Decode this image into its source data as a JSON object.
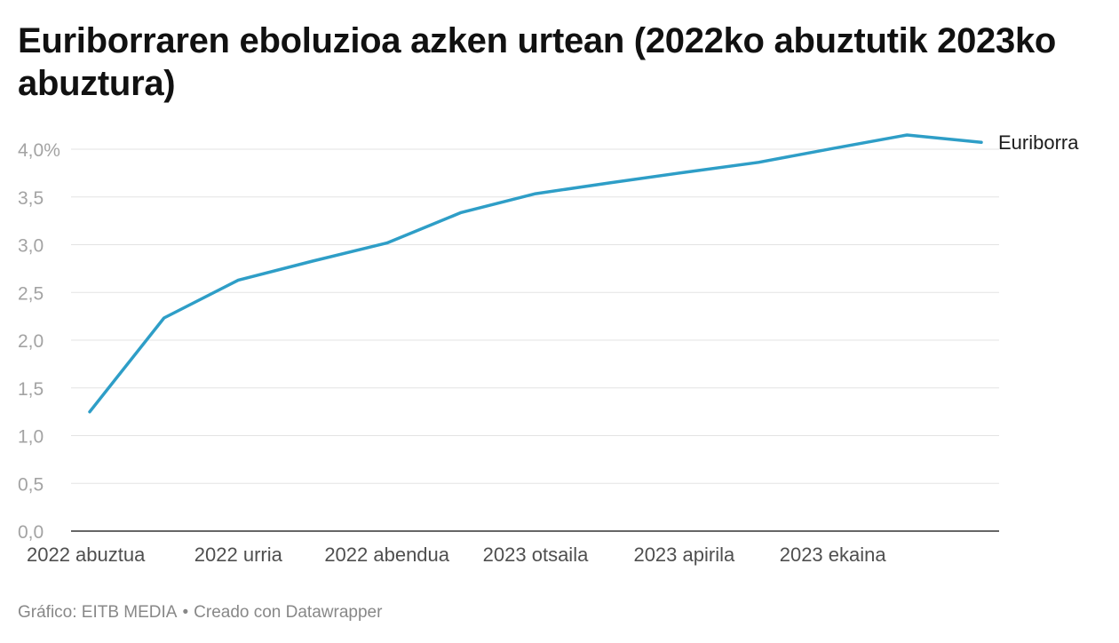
{
  "title": "Euriborraren eboluzioa azken urtean (2022ko abuztutik 2023ko abuztura)",
  "footer": {
    "source": "Gráfico: EITB MEDIA",
    "separator": "•",
    "credit": "Creado con Datawrapper"
  },
  "colors": {
    "line": "#2e9ec7",
    "grid": "#e3e3e3",
    "baseline": "#333333"
  },
  "chart_data": {
    "type": "line",
    "title": "Euriborraren eboluzioa azken urtean (2022ko abuztutik 2023ko abuztura)",
    "xlabel": "",
    "ylabel": "",
    "ylim": [
      0,
      4
    ],
    "yticks": [
      {
        "value": 0,
        "label": "0,0"
      },
      {
        "value": 0.5,
        "label": "0,5"
      },
      {
        "value": 1,
        "label": "1,0"
      },
      {
        "value": 1.5,
        "label": "1,5"
      },
      {
        "value": 2,
        "label": "2,0"
      },
      {
        "value": 2.5,
        "label": "2,5"
      },
      {
        "value": 3,
        "label": "3,0"
      },
      {
        "value": 3.5,
        "label": "3,5"
      },
      {
        "value": 4,
        "label": "4,0%"
      }
    ],
    "x": [
      "2022-08",
      "2022-09",
      "2022-10",
      "2022-11",
      "2022-12",
      "2023-01",
      "2023-02",
      "2023-03",
      "2023-04",
      "2023-05",
      "2023-06",
      "2023-07",
      "2023-08"
    ],
    "xticks": [
      {
        "x": "2022-08",
        "label": "2022 abuztua"
      },
      {
        "x": "2022-10",
        "label": "2022 urria"
      },
      {
        "x": "2022-12",
        "label": "2022 abendua"
      },
      {
        "x": "2023-02",
        "label": "2023 otsaila"
      },
      {
        "x": "2023-04",
        "label": "2023 apirila"
      },
      {
        "x": "2023-06",
        "label": "2023 ekaina"
      }
    ],
    "grid": true,
    "series": [
      {
        "name": "Euriborra",
        "values": [
          1.249,
          2.233,
          2.629,
          2.828,
          3.018,
          3.337,
          3.534,
          3.647,
          3.757,
          3.862,
          4.007,
          4.149,
          4.073
        ]
      }
    ]
  }
}
